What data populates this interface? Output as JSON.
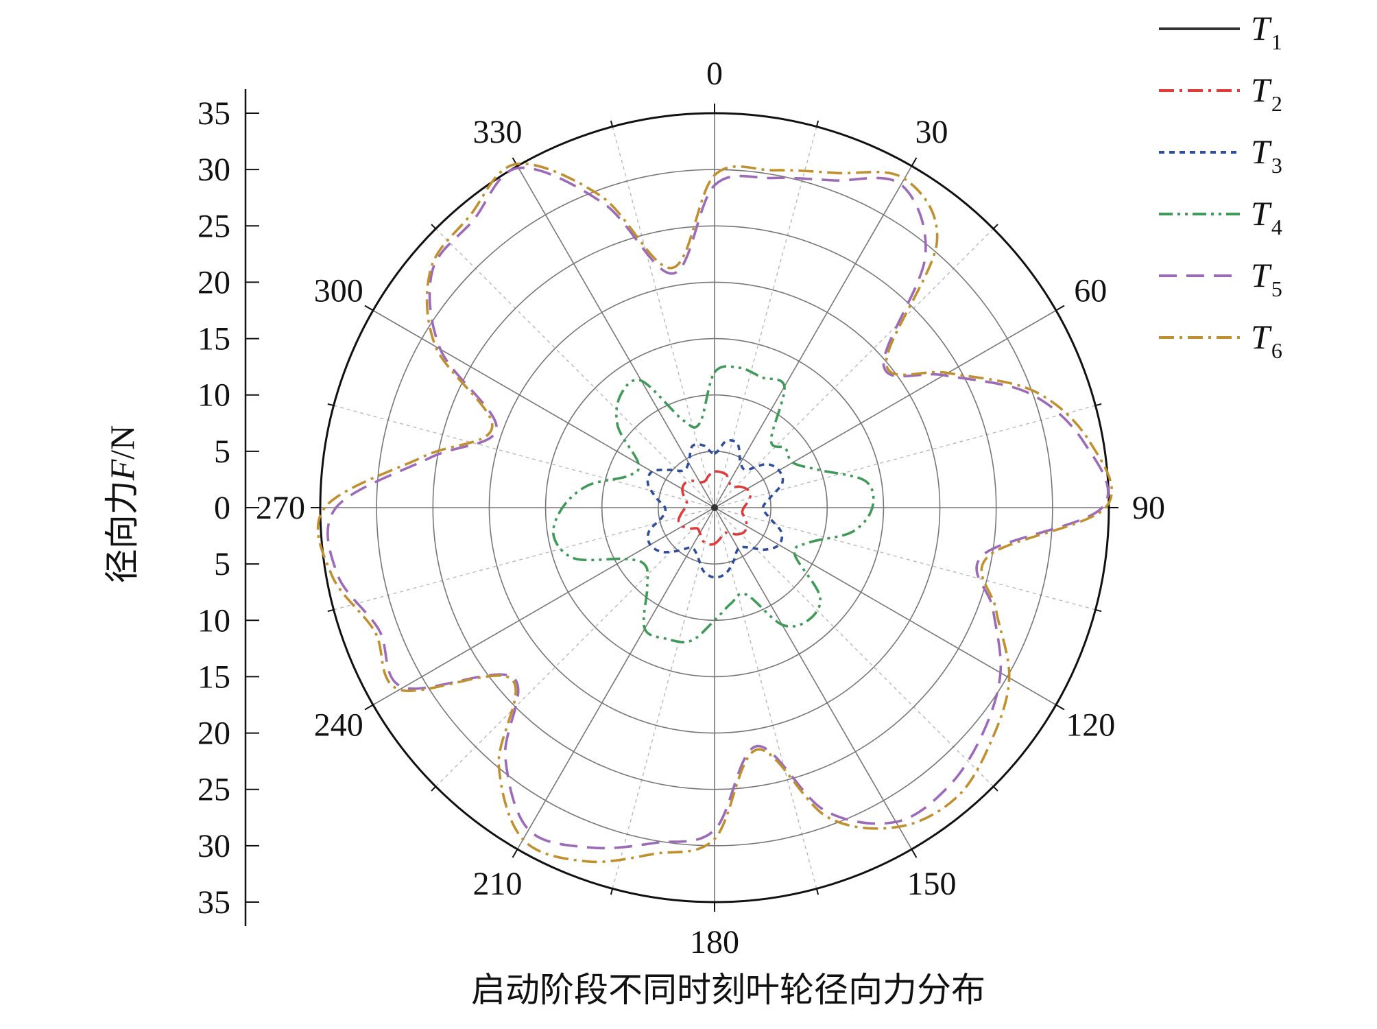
{
  "chart_data": {
    "type": "polar-line",
    "title": "启动阶段不同时刻叶轮径向力分布",
    "radial_axis": {
      "label_parts": [
        "径向力",
        "F",
        "/N"
      ],
      "range": [
        0,
        35
      ],
      "ticks": [
        35,
        30,
        25,
        20,
        15,
        10,
        5,
        0,
        5,
        10,
        15,
        20,
        25,
        30,
        35
      ],
      "ring_values": [
        5,
        10,
        15,
        20,
        25,
        30,
        35
      ]
    },
    "angular_axis": {
      "unit": "degree",
      "direction": "clockwise",
      "zero_location": "top",
      "major_ticks": [
        "0",
        "30",
        "60",
        "90",
        "120",
        "150",
        "180",
        "210",
        "240",
        "270",
        "300",
        "330"
      ],
      "major_values": [
        0,
        30,
        60,
        90,
        120,
        150,
        180,
        210,
        240,
        270,
        300,
        330
      ]
    },
    "legend_position": "top-right",
    "series": [
      {
        "name": "T1",
        "label_main": "T",
        "label_sub": "1",
        "color": "#333333",
        "style": "solid",
        "theta": [
          0,
          90,
          180,
          270
        ],
        "r": [
          0.3,
          0.3,
          0.3,
          0.3
        ]
      },
      {
        "name": "T2",
        "label_main": "T",
        "label_sub": "2",
        "color": "#e03a3a",
        "style": "dashdot",
        "theta": [
          0,
          10,
          20,
          30,
          40,
          50,
          60,
          70,
          80,
          90,
          100,
          110,
          120,
          130,
          140,
          150,
          160,
          170,
          180,
          190,
          200,
          210,
          220,
          230,
          240,
          250,
          260,
          270,
          280,
          290,
          300,
          310,
          320,
          330,
          340,
          350
        ],
        "r": [
          3.2,
          3.2,
          3.1,
          2.6,
          2.4,
          2.9,
          3.3,
          3.4,
          3.0,
          2.6,
          2.5,
          2.9,
          3.3,
          3.4,
          3.1,
          2.6,
          2.4,
          2.8,
          3.2,
          3.3,
          3.1,
          2.6,
          2.4,
          2.9,
          3.3,
          3.4,
          3.0,
          2.6,
          2.5,
          2.9,
          3.3,
          3.4,
          3.1,
          2.6,
          2.5,
          2.9
        ]
      },
      {
        "name": "T3",
        "label_main": "T",
        "label_sub": "3",
        "color": "#2f4f9e",
        "style": "dotted",
        "theta": [
          0,
          10,
          20,
          30,
          40,
          50,
          60,
          70,
          80,
          90,
          100,
          110,
          120,
          130,
          140,
          150,
          160,
          170,
          180,
          190,
          200,
          210,
          220,
          230,
          240,
          250,
          260,
          270,
          280,
          290,
          300,
          310,
          320,
          330,
          340,
          350
        ],
        "r": [
          4.8,
          6.0,
          6.0,
          4.6,
          4.4,
          6.0,
          6.6,
          6.4,
          5.0,
          4.3,
          4.9,
          6.3,
          6.6,
          5.8,
          4.6,
          4.2,
          5.0,
          5.9,
          6.2,
          5.7,
          4.5,
          4.1,
          5.0,
          6.1,
          6.6,
          6.2,
          4.7,
          4.4,
          5.3,
          6.3,
          6.4,
          5.2,
          4.3,
          4.6,
          5.8,
          5.6
        ]
      },
      {
        "name": "T4",
        "label_main": "T",
        "label_sub": "4",
        "color": "#3f9a5a",
        "style": "dashdotdot",
        "theta": [
          0,
          10,
          20,
          30,
          40,
          50,
          60,
          70,
          80,
          90,
          100,
          110,
          120,
          130,
          140,
          150,
          160,
          170,
          180,
          190,
          200,
          210,
          220,
          230,
          240,
          250,
          260,
          270,
          280,
          290,
          300,
          310,
          320,
          330,
          340,
          350
        ],
        "r": [
          12.0,
          12.6,
          12.3,
          12.4,
          7.8,
          8.2,
          8.0,
          9.8,
          13.6,
          14.0,
          12.4,
          9.0,
          8.2,
          12.2,
          13.0,
          12.0,
          8.2,
          8.6,
          10.0,
          12.0,
          12.4,
          12.4,
          9.3,
          8.0,
          9.1,
          13.2,
          14.5,
          13.5,
          11.4,
          8.2,
          7.8,
          11.2,
          13.0,
          13.0,
          8.3,
          7.6
        ]
      },
      {
        "name": "T5",
        "label_main": "T",
        "label_sub": "5",
        "color": "#9b6ab8",
        "style": "longdash",
        "theta": [
          0,
          10,
          20,
          30,
          40,
          50,
          60,
          70,
          80,
          90,
          100,
          110,
          120,
          130,
          140,
          150,
          160,
          170,
          180,
          190,
          200,
          210,
          220,
          230,
          240,
          250,
          260,
          270,
          280,
          290,
          300,
          310,
          320,
          330,
          340,
          350
        ],
        "r": [
          28.6,
          29.7,
          30.9,
          33.1,
          29.1,
          19.6,
          23.5,
          29.7,
          33.3,
          34.4,
          24.2,
          26.3,
          29.3,
          31.1,
          32.3,
          32.2,
          28.6,
          21.5,
          28.6,
          30.2,
          32.1,
          33.0,
          28.9,
          23.4,
          31.9,
          31.7,
          34.0,
          33.6,
          25.6,
          20.6,
          28.1,
          32.7,
          33.3,
          34.8,
          28.7,
          21.1
        ]
      },
      {
        "name": "T6",
        "label_main": "T",
        "label_sub": "6",
        "color": "#c0902f",
        "style": "dashdot",
        "theta": [
          0,
          10,
          20,
          30,
          40,
          50,
          60,
          70,
          80,
          90,
          100,
          110,
          120,
          130,
          140,
          150,
          160,
          170,
          180,
          190,
          200,
          210,
          220,
          230,
          240,
          250,
          260,
          270,
          280,
          290,
          300,
          310,
          320,
          330,
          340,
          350
        ],
        "r": [
          29.5,
          30.4,
          31.6,
          33.7,
          30.7,
          19.9,
          23.9,
          30.2,
          33.8,
          34.7,
          24.7,
          26.6,
          30.2,
          32.1,
          33.5,
          32.7,
          29.2,
          21.8,
          29.4,
          31.2,
          33.4,
          34.0,
          29.8,
          23.6,
          32.3,
          32.1,
          34.5,
          34.6,
          26.2,
          21.0,
          28.6,
          32.9,
          33.8,
          35.2,
          29.4,
          21.6
        ]
      }
    ]
  }
}
